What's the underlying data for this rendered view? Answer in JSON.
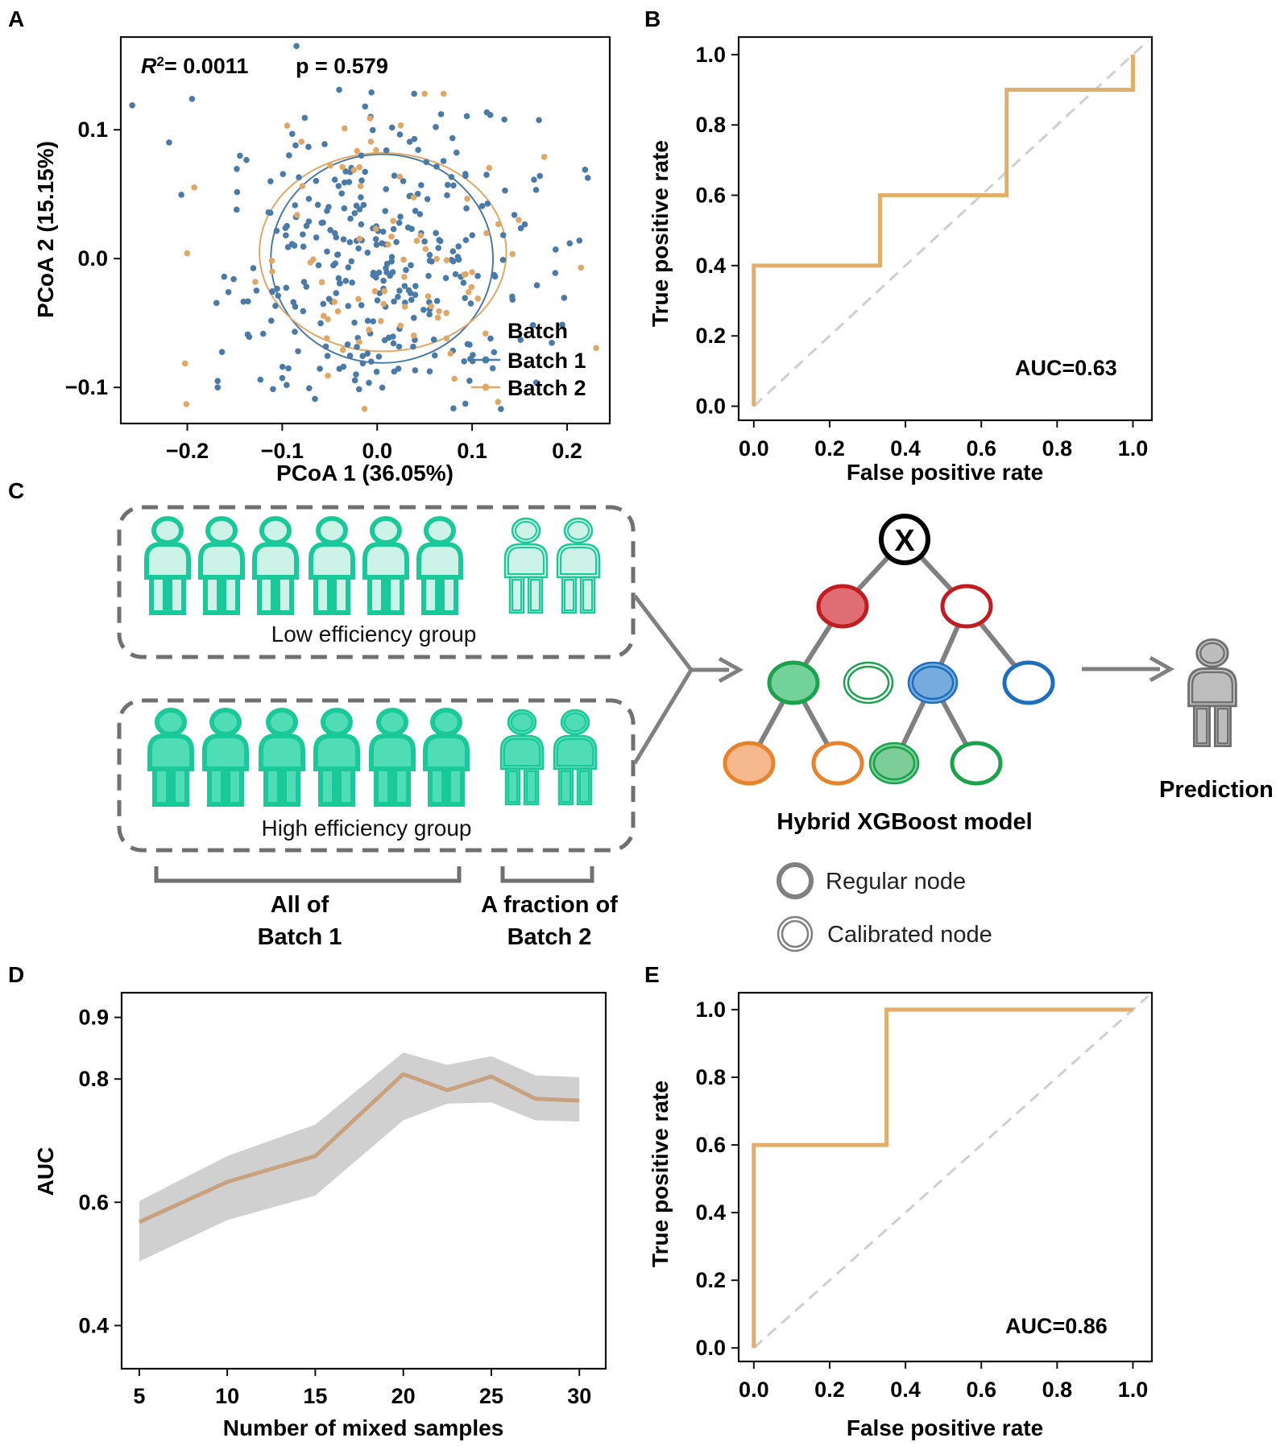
{
  "figure": {
    "panels": {
      "a": "A",
      "b": "B",
      "c": "C",
      "d": "D",
      "e": "E"
    }
  },
  "colors": {
    "batch1": "#4a7aa7",
    "batch2": "#e0a867",
    "roc": "#e3ad6c",
    "auc_line": "#c8a27e",
    "ci_band": "#d0d0d0",
    "person_low": "#cdf3e8",
    "person_high": "#50dcb5",
    "person_stroke": "#19c99a",
    "predict_person": "#bdbdbd"
  },
  "chart_data": [
    {
      "id": "A",
      "type": "scatter",
      "xlabel": "PCoA 1 (36.05%)",
      "ylabel": "PCoA 2 (15.15%)",
      "xlim": [
        -0.27,
        0.245
      ],
      "ylim": [
        -0.128,
        0.172
      ],
      "xticks": [
        -0.2,
        -0.1,
        0.0,
        0.1,
        0.2
      ],
      "xtick_labels": [
        "−0.2",
        "−0.1",
        "0.0",
        "0.1",
        "0.2"
      ],
      "yticks": [
        -0.1,
        0.0,
        0.1
      ],
      "ytick_labels": [
        "−0.1",
        "0.0",
        "0.1"
      ],
      "r2_text": "= 0.0011",
      "r2_symbol": "R",
      "r2_sup": "2",
      "p_text": "p = 0.579",
      "legend_title": "Batch",
      "series": [
        {
          "name": "Batch 1",
          "n": 310,
          "center": [
            0.004,
            -0.005
          ],
          "spread": [
            0.082,
            0.058
          ],
          "ellipse": {
            "cx": 0.005,
            "cy": 0.0,
            "rx": 0.117,
            "ry": 0.081
          }
        },
        {
          "name": "Batch 2",
          "n": 80,
          "center": [
            0.01,
            0.0
          ],
          "spread": [
            0.085,
            0.062
          ],
          "ellipse": {
            "cx": 0.006,
            "cy": 0.005,
            "rx": 0.13,
            "ry": 0.077
          }
        }
      ],
      "extra_points": [
        [
          -0.258,
          0.119
        ],
        [
          -0.201,
          -0.113
        ],
        [
          -0.168,
          -0.1
        ],
        [
          -0.168,
          -0.095
        ],
        [
          -0.195,
          0.124
        ],
        [
          -0.123,
          -0.094
        ],
        [
          -0.085,
          0.165
        ],
        [
          0.134,
          0.108
        ],
        [
          0.219,
          0.069
        ],
        [
          0.213,
          0.014
        ],
        [
          0.176,
          0.079
        ],
        [
          0.07,
          0.128
        ],
        [
          0.05,
          0.128
        ],
        [
          0.039,
          0.128
        ],
        [
          -0.006,
          0.129
        ],
        [
          -0.04,
          0.131
        ],
        [
          -0.148,
          0.038
        ]
      ]
    },
    {
      "id": "B",
      "type": "line",
      "xlabel": "False positive rate",
      "ylabel": "True positive rate",
      "xlim": [
        -0.04,
        1.05
      ],
      "ylim": [
        -0.04,
        1.05
      ],
      "ticks": [
        0.0,
        0.2,
        0.4,
        0.6,
        0.8,
        1.0
      ],
      "tick_labels": [
        "0.0",
        "0.2",
        "0.4",
        "0.6",
        "0.8",
        "1.0"
      ],
      "x": [
        0.0,
        0.0,
        0.333,
        0.333,
        0.667,
        0.667,
        1.0,
        1.0
      ],
      "y": [
        0.0,
        0.4,
        0.4,
        0.6,
        0.6,
        0.9,
        0.9,
        1.0
      ],
      "auc_label": "AUC=0.63"
    },
    {
      "id": "D",
      "type": "line",
      "xlabel": "Number of mixed samples",
      "ylabel": "AUC",
      "xlim": [
        4.0,
        31.5
      ],
      "ylim": [
        0.33,
        0.94
      ],
      "xticks": [
        5,
        10,
        15,
        20,
        25,
        30
      ],
      "xtick_labels": [
        "5",
        "10",
        "15",
        "20",
        "25",
        "30"
      ],
      "yticks": [
        0.4,
        0.6,
        0.8,
        0.9
      ],
      "ytick_labels": [
        "0.4",
        "0.6",
        "0.8",
        "0.9"
      ],
      "x": [
        5,
        10,
        15,
        20,
        22.5,
        25,
        27.5,
        30
      ],
      "y": [
        0.568,
        0.633,
        0.675,
        0.808,
        0.782,
        0.804,
        0.768,
        0.765
      ],
      "lower": [
        0.504,
        0.571,
        0.611,
        0.733,
        0.76,
        0.762,
        0.733,
        0.731
      ],
      "upper": [
        0.602,
        0.675,
        0.726,
        0.843,
        0.823,
        0.837,
        0.806,
        0.803
      ]
    },
    {
      "id": "E",
      "type": "line",
      "xlabel": "False positive rate",
      "ylabel": "True positive rate",
      "xlim": [
        -0.04,
        1.05
      ],
      "ylim": [
        -0.04,
        1.05
      ],
      "ticks": [
        0.0,
        0.2,
        0.4,
        0.6,
        0.8,
        1.0
      ],
      "tick_labels": [
        "0.0",
        "0.2",
        "0.4",
        "0.6",
        "0.8",
        "1.0"
      ],
      "x": [
        0.0,
        0.0,
        0.35,
        0.35,
        1.0
      ],
      "y": [
        0.0,
        0.6,
        0.6,
        1.0,
        1.0
      ],
      "auc_label": "AUC=0.86"
    }
  ],
  "diagram": {
    "low_group_label": "Low efficiency group",
    "high_group_label": "High efficiency group",
    "batch1_line1": "All of",
    "batch1_line2": "Batch 1",
    "batch2_line1": "A fraction of",
    "batch2_line2": "Batch 2",
    "root_symbol": "X",
    "model_label": "Hybrid XGBoost model",
    "prediction_label": "Prediction",
    "legend_regular": "Regular node",
    "legend_calibrated": "Calibrated node"
  }
}
